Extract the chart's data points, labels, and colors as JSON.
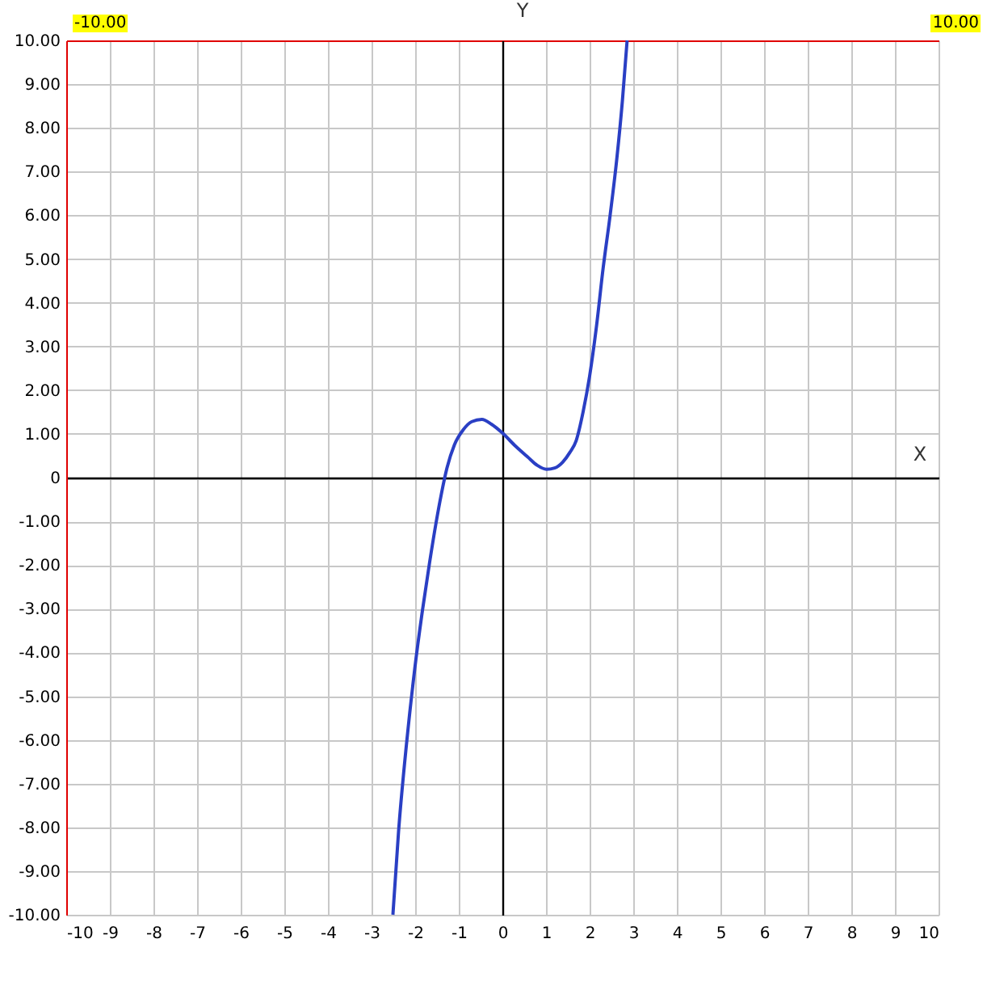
{
  "chart_data": {
    "type": "line",
    "xlabel": "X",
    "ylabel": "Y",
    "annotations": [
      "-10.00",
      "10.00"
    ],
    "x": [
      -2.51,
      -2.38,
      -2.2,
      -2.01,
      -1.83,
      -1.67,
      -1.52,
      -1.4,
      -1.27,
      -1.1,
      -0.9,
      -0.7,
      -0.47,
      -0.25,
      0,
      0.3,
      0.58,
      0.8,
      1.01,
      1.2,
      1.38,
      1.55,
      1.69,
      1.85,
      2.0,
      2.15,
      2.31,
      2.47,
      2.62,
      2.75,
      2.86
    ],
    "series": [
      {
        "color": "#2a3fc4",
        "values": [
          -10.0,
          -8.09,
          -6.11,
          -4.38,
          -3.02,
          -1.95,
          -1.03,
          -0.38,
          0.22,
          0.75,
          1.09,
          1.28,
          1.33,
          1.22,
          1.02,
          0.72,
          0.47,
          0.28,
          0.19,
          0.22,
          0.35,
          0.58,
          0.84,
          1.5,
          2.32,
          3.4,
          4.79,
          6.0,
          7.26,
          8.6,
          10.0
        ]
      }
    ],
    "xlim": [
      -10,
      10
    ],
    "ylim": [
      -10,
      10
    ],
    "xticks": [
      -10,
      -9,
      -8,
      -7,
      -6,
      -5,
      -4,
      -3,
      -2,
      -1,
      0,
      1,
      2,
      3,
      4,
      5,
      6,
      7,
      8,
      9,
      10
    ],
    "yticks": [
      {
        "value": -10,
        "label": "-10.00"
      },
      {
        "value": -9,
        "label": "-9.00"
      },
      {
        "value": -8,
        "label": "-8.00"
      },
      {
        "value": -7,
        "label": "-7.00"
      },
      {
        "value": -6,
        "label": "-6.00"
      },
      {
        "value": -5,
        "label": "-5.00"
      },
      {
        "value": -4,
        "label": "-4.00"
      },
      {
        "value": -3,
        "label": "-3.00"
      },
      {
        "value": -2,
        "label": "-2.00"
      },
      {
        "value": -1,
        "label": "-1.00"
      },
      0,
      {
        "value": 1,
        "label": "1.00"
      },
      {
        "value": 2,
        "label": "2.00"
      },
      {
        "value": 3,
        "label": "3.00"
      },
      {
        "value": 4,
        "label": "4.00"
      },
      {
        "value": 5,
        "label": "5.00"
      },
      {
        "value": 6,
        "label": "6.00"
      },
      {
        "value": 7,
        "label": "7.00"
      },
      {
        "value": 8,
        "label": "8.00"
      },
      {
        "value": 9,
        "label": "9.00"
      },
      {
        "value": 10,
        "label": "10.00"
      }
    ],
    "grid": true,
    "legend": false,
    "marker": "none",
    "line_style": "solid"
  }
}
